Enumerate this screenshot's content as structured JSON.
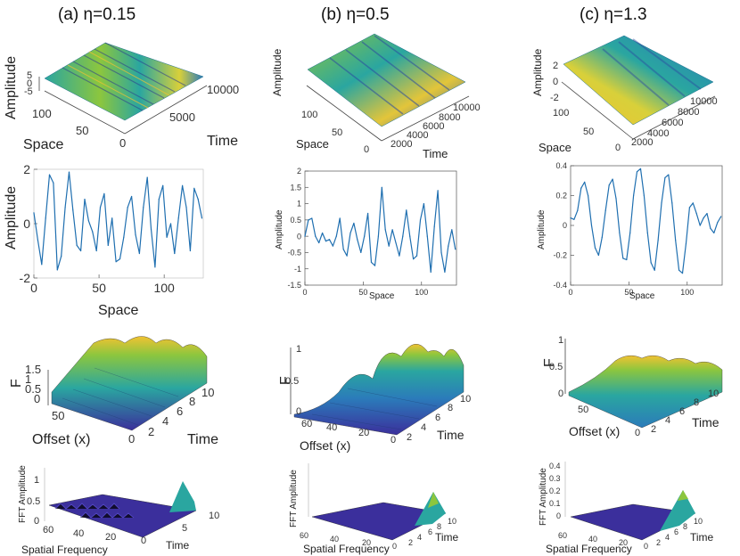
{
  "columns": [
    {
      "title": "(a)  η=0.15"
    },
    {
      "title": "(b)  η=0.5"
    },
    {
      "title": "(c)  η=1.3"
    }
  ],
  "colors": {
    "line": "#1f6fb0",
    "surface_low": "#3b2f9c",
    "surface_mid": "#2aa6a0",
    "surface_high": "#f1c232"
  },
  "surf_a": {
    "ylabel": "Amplitude",
    "xlabel": "Space",
    "tlabel": "Time",
    "z_ticks": [
      "5",
      "0",
      "-5"
    ],
    "space_ticks": [
      "100",
      "50",
      "0"
    ],
    "time_ticks": [
      "10000",
      "5000"
    ]
  },
  "surf_b": {
    "ylabel": "Amplitude",
    "xlabel": "Space",
    "tlabel": "Time",
    "space_ticks": [
      "100",
      "50",
      "0"
    ],
    "time_ticks": [
      "10000",
      "8000",
      "6000",
      "4000",
      "2000"
    ]
  },
  "surf_c": {
    "ylabel": "Amplitude",
    "xlabel": "Space",
    "tlabel": "Time",
    "z_ticks": [
      "2",
      "0",
      "-2"
    ],
    "space_ticks": [
      "100",
      "50",
      "0"
    ],
    "time_ticks": [
      "10000",
      "8000",
      "6000",
      "4000",
      "2000"
    ]
  },
  "f_a": {
    "zlabel": "F",
    "xlabel": "Offset (x)",
    "tlabel": "Time",
    "z_ticks": [
      "1.5",
      "1",
      "0.5",
      "0"
    ],
    "x_ticks": [
      "50",
      "0"
    ],
    "t_ticks": [
      "2",
      "4",
      "6",
      "8",
      "10"
    ]
  },
  "f_b": {
    "zlabel": "F",
    "xlabel": "Offset (x)",
    "tlabel": "Time",
    "z_ticks": [
      "1",
      "0.5",
      "0"
    ],
    "x_ticks": [
      "60",
      "40",
      "20",
      "0"
    ],
    "t_ticks": [
      "2",
      "4",
      "6",
      "8",
      "10"
    ]
  },
  "f_c": {
    "zlabel": "F",
    "xlabel": "Offset (x)",
    "tlabel": "Time",
    "z_ticks": [
      "1",
      "0.5",
      "0"
    ],
    "x_ticks": [
      "50",
      "0"
    ],
    "t_ticks": [
      "2",
      "4",
      "6",
      "8",
      "10"
    ]
  },
  "fft_a": {
    "zlabel": "FFT Amplitude",
    "xlabel": "Spatial Frequency",
    "tlabel": "Time",
    "z_ticks": [
      "1",
      "0.5",
      "0"
    ],
    "x_ticks": [
      "60",
      "40",
      "20",
      "0"
    ],
    "t_ticks": [
      "5",
      "10"
    ]
  },
  "fft_b": {
    "zlabel": "FFT Amplitude",
    "xlabel": "Spatial Frequency",
    "tlabel": "Time",
    "x_ticks": [
      "60",
      "40",
      "20",
      "0"
    ],
    "t_ticks": [
      "2",
      "4",
      "6",
      "8",
      "10"
    ]
  },
  "fft_c": {
    "zlabel": "FFT Amplitude",
    "xlabel": "Spatial Frequency",
    "tlabel": "Time",
    "z_ticks": [
      "0.4",
      "0.3",
      "0.2",
      "0.1",
      "0"
    ],
    "x_ticks": [
      "60",
      "40",
      "20",
      "0"
    ],
    "t_ticks": [
      "2",
      "4",
      "6",
      "8",
      "10"
    ]
  },
  "chart_data": [
    {
      "type": "line",
      "id": "line_a",
      "title": "",
      "xlabel": "Space",
      "ylabel": "Amplitude",
      "xlim": [
        0,
        130
      ],
      "ylim": [
        -2,
        2
      ],
      "xticks": [
        "0",
        "50",
        "100"
      ],
      "yticks": [
        "2",
        "0",
        "-2"
      ],
      "x": [
        0,
        3,
        6,
        9,
        12,
        15,
        18,
        21,
        24,
        27,
        30,
        33,
        36,
        39,
        42,
        45,
        48,
        51,
        54,
        57,
        60,
        63,
        66,
        69,
        72,
        75,
        78,
        81,
        84,
        87,
        90,
        93,
        96,
        99,
        102,
        105,
        108,
        111,
        114,
        117,
        120,
        123,
        126,
        129
      ],
      "series": [
        {
          "name": "amplitude",
          "values": [
            0.4,
            -0.6,
            -1.5,
            0.2,
            1.8,
            1.5,
            -1.7,
            -1.2,
            0.6,
            1.9,
            0.5,
            -0.8,
            -1.0,
            0.9,
            0.1,
            -0.3,
            -1.0,
            0.6,
            1.1,
            -0.8,
            0.2,
            -1.4,
            -1.3,
            -0.5,
            0.6,
            1.0,
            -0.4,
            -1.1,
            0.6,
            1.7,
            -0.2,
            -1.6,
            0.9,
            1.4,
            -0.5,
            0.0,
            -1.1,
            0.2,
            1.4,
            0.6,
            -1.0,
            1.3,
            0.9,
            0.2
          ]
        }
      ]
    },
    {
      "type": "line",
      "id": "line_b",
      "title": "",
      "xlabel": "Space",
      "ylabel": "Amplitude",
      "xlim": [
        0,
        130
      ],
      "ylim": [
        -1.5,
        2
      ],
      "xticks": [
        "0",
        "50",
        "100"
      ],
      "yticks": [
        "2",
        "1.5",
        "1",
        "0.5",
        "0",
        "-0.5",
        "-1",
        "-1.5"
      ],
      "x": [
        0,
        3,
        6,
        9,
        12,
        15,
        18,
        21,
        24,
        27,
        30,
        33,
        36,
        39,
        42,
        45,
        48,
        51,
        54,
        57,
        60,
        63,
        66,
        69,
        72,
        75,
        78,
        81,
        84,
        87,
        90,
        93,
        96,
        99,
        102,
        105,
        108,
        111,
        114,
        117,
        120,
        123,
        126,
        129
      ],
      "series": [
        {
          "name": "amplitude",
          "values": [
            0.0,
            0.5,
            0.55,
            0.0,
            -0.2,
            0.1,
            -0.15,
            -0.1,
            -0.3,
            0.0,
            0.55,
            -0.4,
            -0.6,
            0.1,
            0.4,
            -0.1,
            -0.5,
            0.0,
            0.7,
            -0.8,
            -0.9,
            0.0,
            1.5,
            0.2,
            -0.3,
            0.2,
            -0.2,
            -0.6,
            0.0,
            0.8,
            0.0,
            -0.7,
            -0.6,
            0.5,
            1.0,
            0.0,
            -1.1,
            0.3,
            1.4,
            -0.5,
            -1.1,
            -0.3,
            0.2,
            -0.4
          ]
        }
      ]
    },
    {
      "type": "line",
      "id": "line_c",
      "title": "",
      "xlabel": "Space",
      "ylabel": "Amplitude",
      "xlim": [
        0,
        130
      ],
      "ylim": [
        -0.4,
        0.4
      ],
      "xticks": [
        "0",
        "50",
        "100"
      ],
      "yticks": [
        "0.4",
        "0.2",
        "0",
        "-0.2",
        "-0.4"
      ],
      "x": [
        0,
        3,
        6,
        9,
        12,
        15,
        18,
        21,
        24,
        27,
        30,
        33,
        36,
        39,
        42,
        45,
        48,
        51,
        54,
        57,
        60,
        63,
        66,
        69,
        72,
        75,
        78,
        81,
        84,
        87,
        90,
        93,
        96,
        99,
        102,
        105,
        108,
        111,
        114,
        117,
        120,
        123,
        126,
        129
      ],
      "series": [
        {
          "name": "amplitude",
          "values": [
            0.05,
            0.04,
            0.1,
            0.25,
            0.29,
            0.2,
            0.0,
            -0.15,
            -0.2,
            -0.08,
            0.1,
            0.27,
            0.31,
            0.18,
            -0.05,
            -0.22,
            -0.23,
            -0.05,
            0.2,
            0.36,
            0.38,
            0.2,
            -0.05,
            -0.25,
            -0.3,
            -0.1,
            0.15,
            0.32,
            0.34,
            0.15,
            -0.1,
            -0.3,
            -0.32,
            -0.12,
            0.12,
            0.15,
            0.08,
            0.0,
            0.05,
            0.08,
            -0.02,
            -0.05,
            0.02,
            0.06
          ]
        }
      ]
    }
  ]
}
